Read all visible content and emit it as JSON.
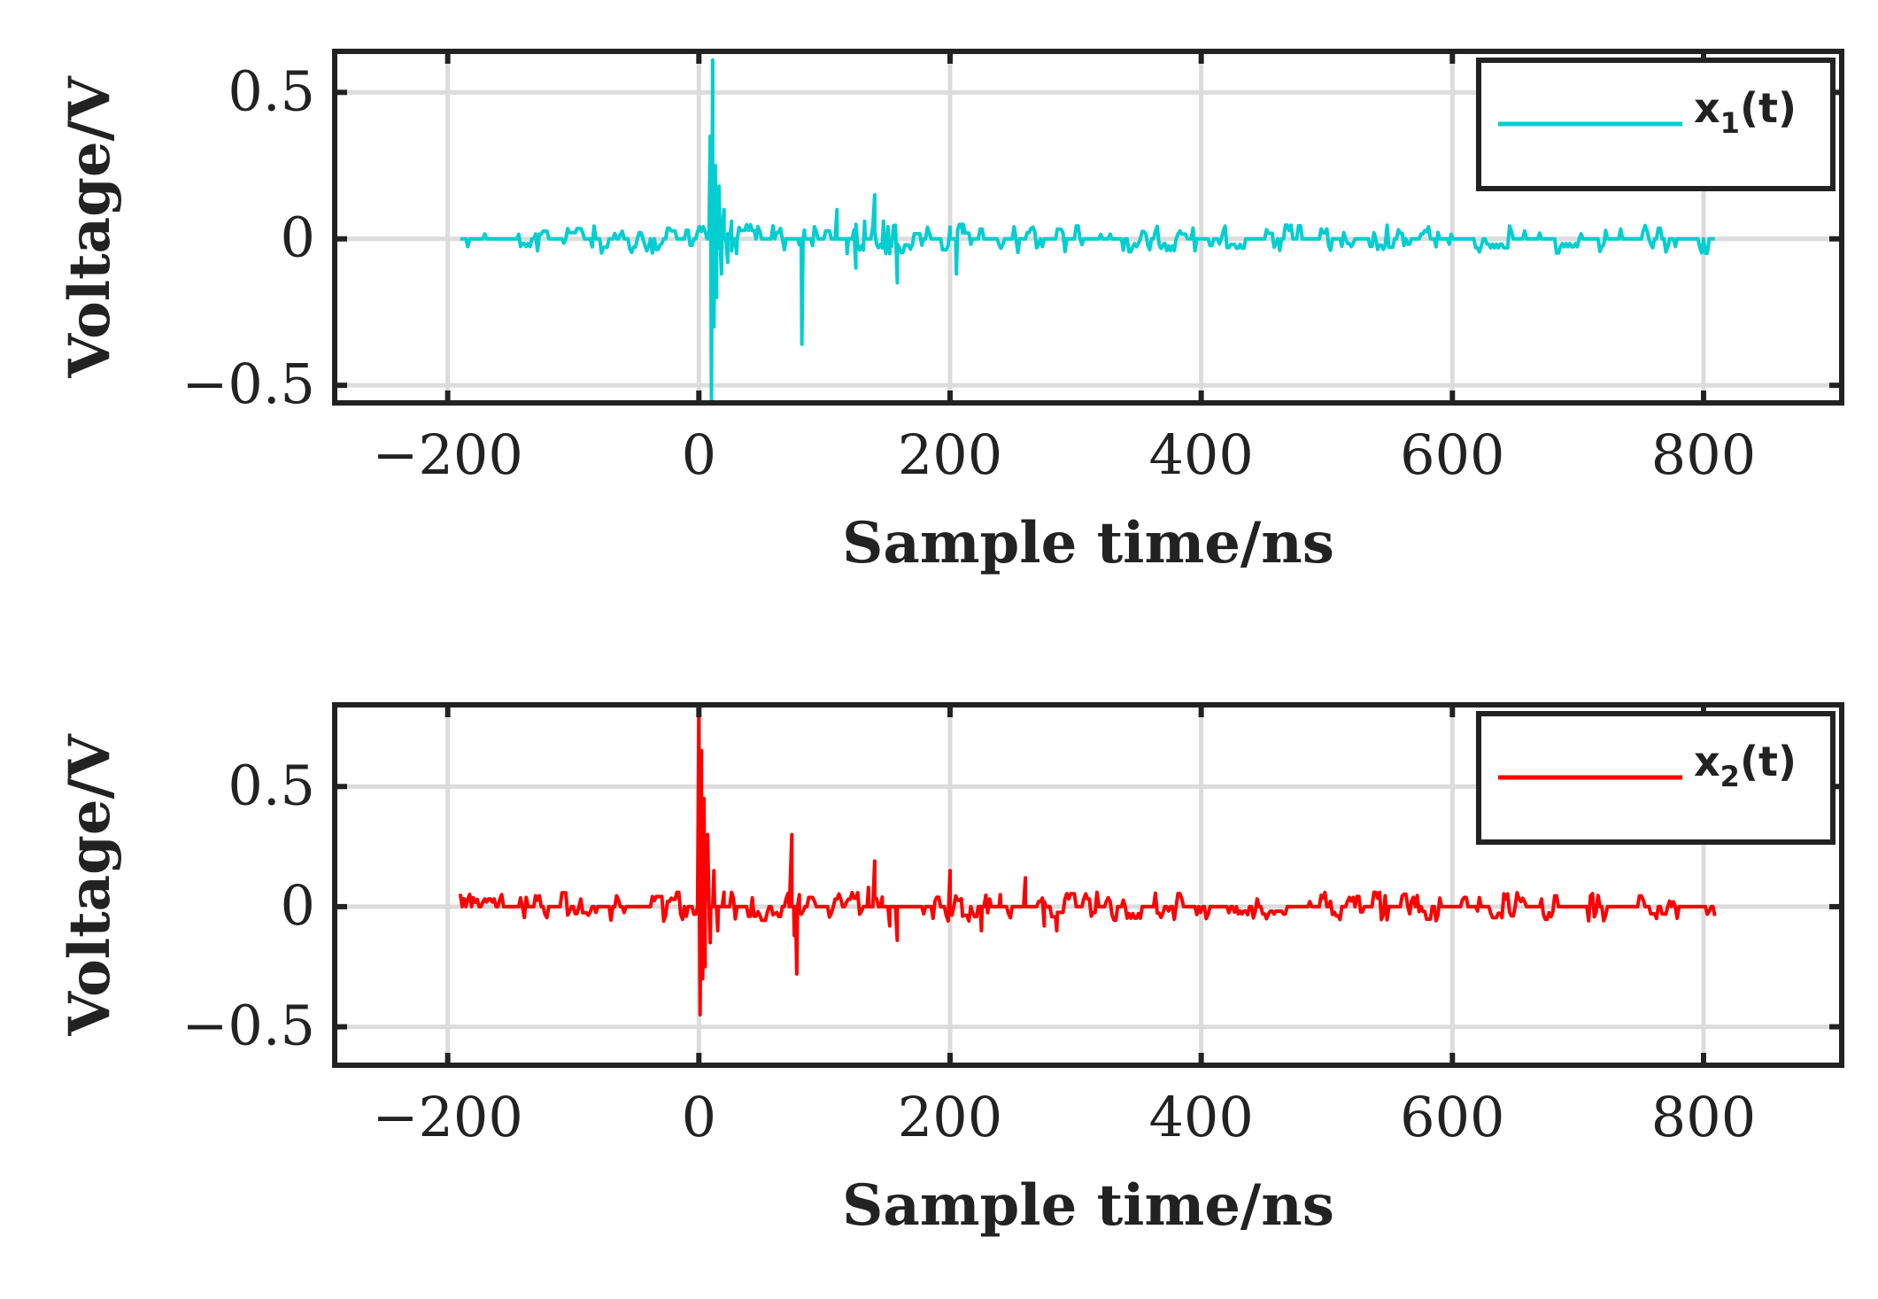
{
  "chart_data": [
    {
      "type": "line",
      "xlabel": "Sample time/ns",
      "ylabel": "Voltage/V",
      "xlim": [
        -290,
        910
      ],
      "ylim": [
        -0.56,
        0.64
      ],
      "xticks": [
        -200,
        0,
        200,
        400,
        600,
        800
      ],
      "xtick_labels": [
        "−200",
        "0",
        "200",
        "400",
        "600",
        "800"
      ],
      "yticks": [
        -0.5,
        0,
        0.5
      ],
      "ytick_labels": [
        "−0.5",
        "0",
        "0.5"
      ],
      "grid": true,
      "legend_position": "top-right",
      "series": [
        {
          "name": "x1(t)",
          "legend_main": "x",
          "legend_sub": "1",
          "legend_tail": "(t)",
          "color": "#00CED1",
          "x_range": [
            -190,
            810
          ],
          "points": [
            [
              8,
              0.0
            ],
            [
              9,
              0.35
            ],
            [
              10,
              -0.55
            ],
            [
              11,
              0.61
            ],
            [
              12,
              -0.3
            ],
            [
              13,
              0.25
            ],
            [
              14,
              -0.2
            ],
            [
              16,
              0.18
            ],
            [
              18,
              -0.12
            ],
            [
              20,
              0.1
            ],
            [
              23,
              -0.08
            ],
            [
              26,
              0.06
            ],
            [
              30,
              -0.05
            ],
            [
              80,
              -0.02
            ],
            [
              82,
              -0.36
            ],
            [
              84,
              0.03
            ],
            [
              110,
              0.1
            ],
            [
              118,
              -0.05
            ],
            [
              125,
              -0.1
            ],
            [
              132,
              0.06
            ],
            [
              140,
              0.15
            ],
            [
              147,
              0.06
            ],
            [
              152,
              -0.05
            ],
            [
              158,
              -0.15
            ],
            [
              165,
              -0.02
            ],
            [
              200,
              0.04
            ],
            [
              205,
              -0.12
            ],
            [
              210,
              0.02
            ]
          ],
          "noise_amplitude": 0.05
        }
      ]
    },
    {
      "type": "line",
      "xlabel": "Sample time/ns",
      "ylabel": "Voltage/V",
      "xlim": [
        -290,
        910
      ],
      "ylim": [
        -0.66,
        0.84
      ],
      "xticks": [
        -200,
        0,
        200,
        400,
        600,
        800
      ],
      "xtick_labels": [
        "−200",
        "0",
        "200",
        "400",
        "600",
        "800"
      ],
      "yticks": [
        -0.5,
        0,
        0.5
      ],
      "ytick_labels": [
        "−0.5",
        "0",
        "0.5"
      ],
      "grid": true,
      "legend_position": "top-right",
      "series": [
        {
          "name": "x2(t)",
          "legend_main": "x",
          "legend_sub": "2",
          "legend_tail": "(t)",
          "color": "#FF0000",
          "x_range": [
            -190,
            810
          ],
          "points": [
            [
              -1,
              0.0
            ],
            [
              0,
              0.82
            ],
            [
              1,
              -0.45
            ],
            [
              2,
              0.65
            ],
            [
              3,
              -0.3
            ],
            [
              4,
              0.45
            ],
            [
              5,
              -0.25
            ],
            [
              7,
              0.3
            ],
            [
              9,
              -0.15
            ],
            [
              12,
              0.15
            ],
            [
              15,
              -0.1
            ],
            [
              20,
              0.06
            ],
            [
              72,
              0.0
            ],
            [
              74,
              0.3
            ],
            [
              76,
              -0.12
            ],
            [
              78,
              -0.28
            ],
            [
              80,
              0.05
            ],
            [
              135,
              0.08
            ],
            [
              140,
              0.19
            ],
            [
              146,
              0.04
            ],
            [
              152,
              -0.08
            ],
            [
              158,
              -0.14
            ],
            [
              165,
              0.0
            ],
            [
              200,
              0.15
            ],
            [
              210,
              -0.04
            ],
            [
              225,
              -0.1
            ],
            [
              240,
              0.05
            ],
            [
              260,
              0.12
            ],
            [
              275,
              -0.08
            ],
            [
              285,
              -0.1
            ]
          ],
          "noise_amplitude": 0.06
        }
      ]
    }
  ]
}
